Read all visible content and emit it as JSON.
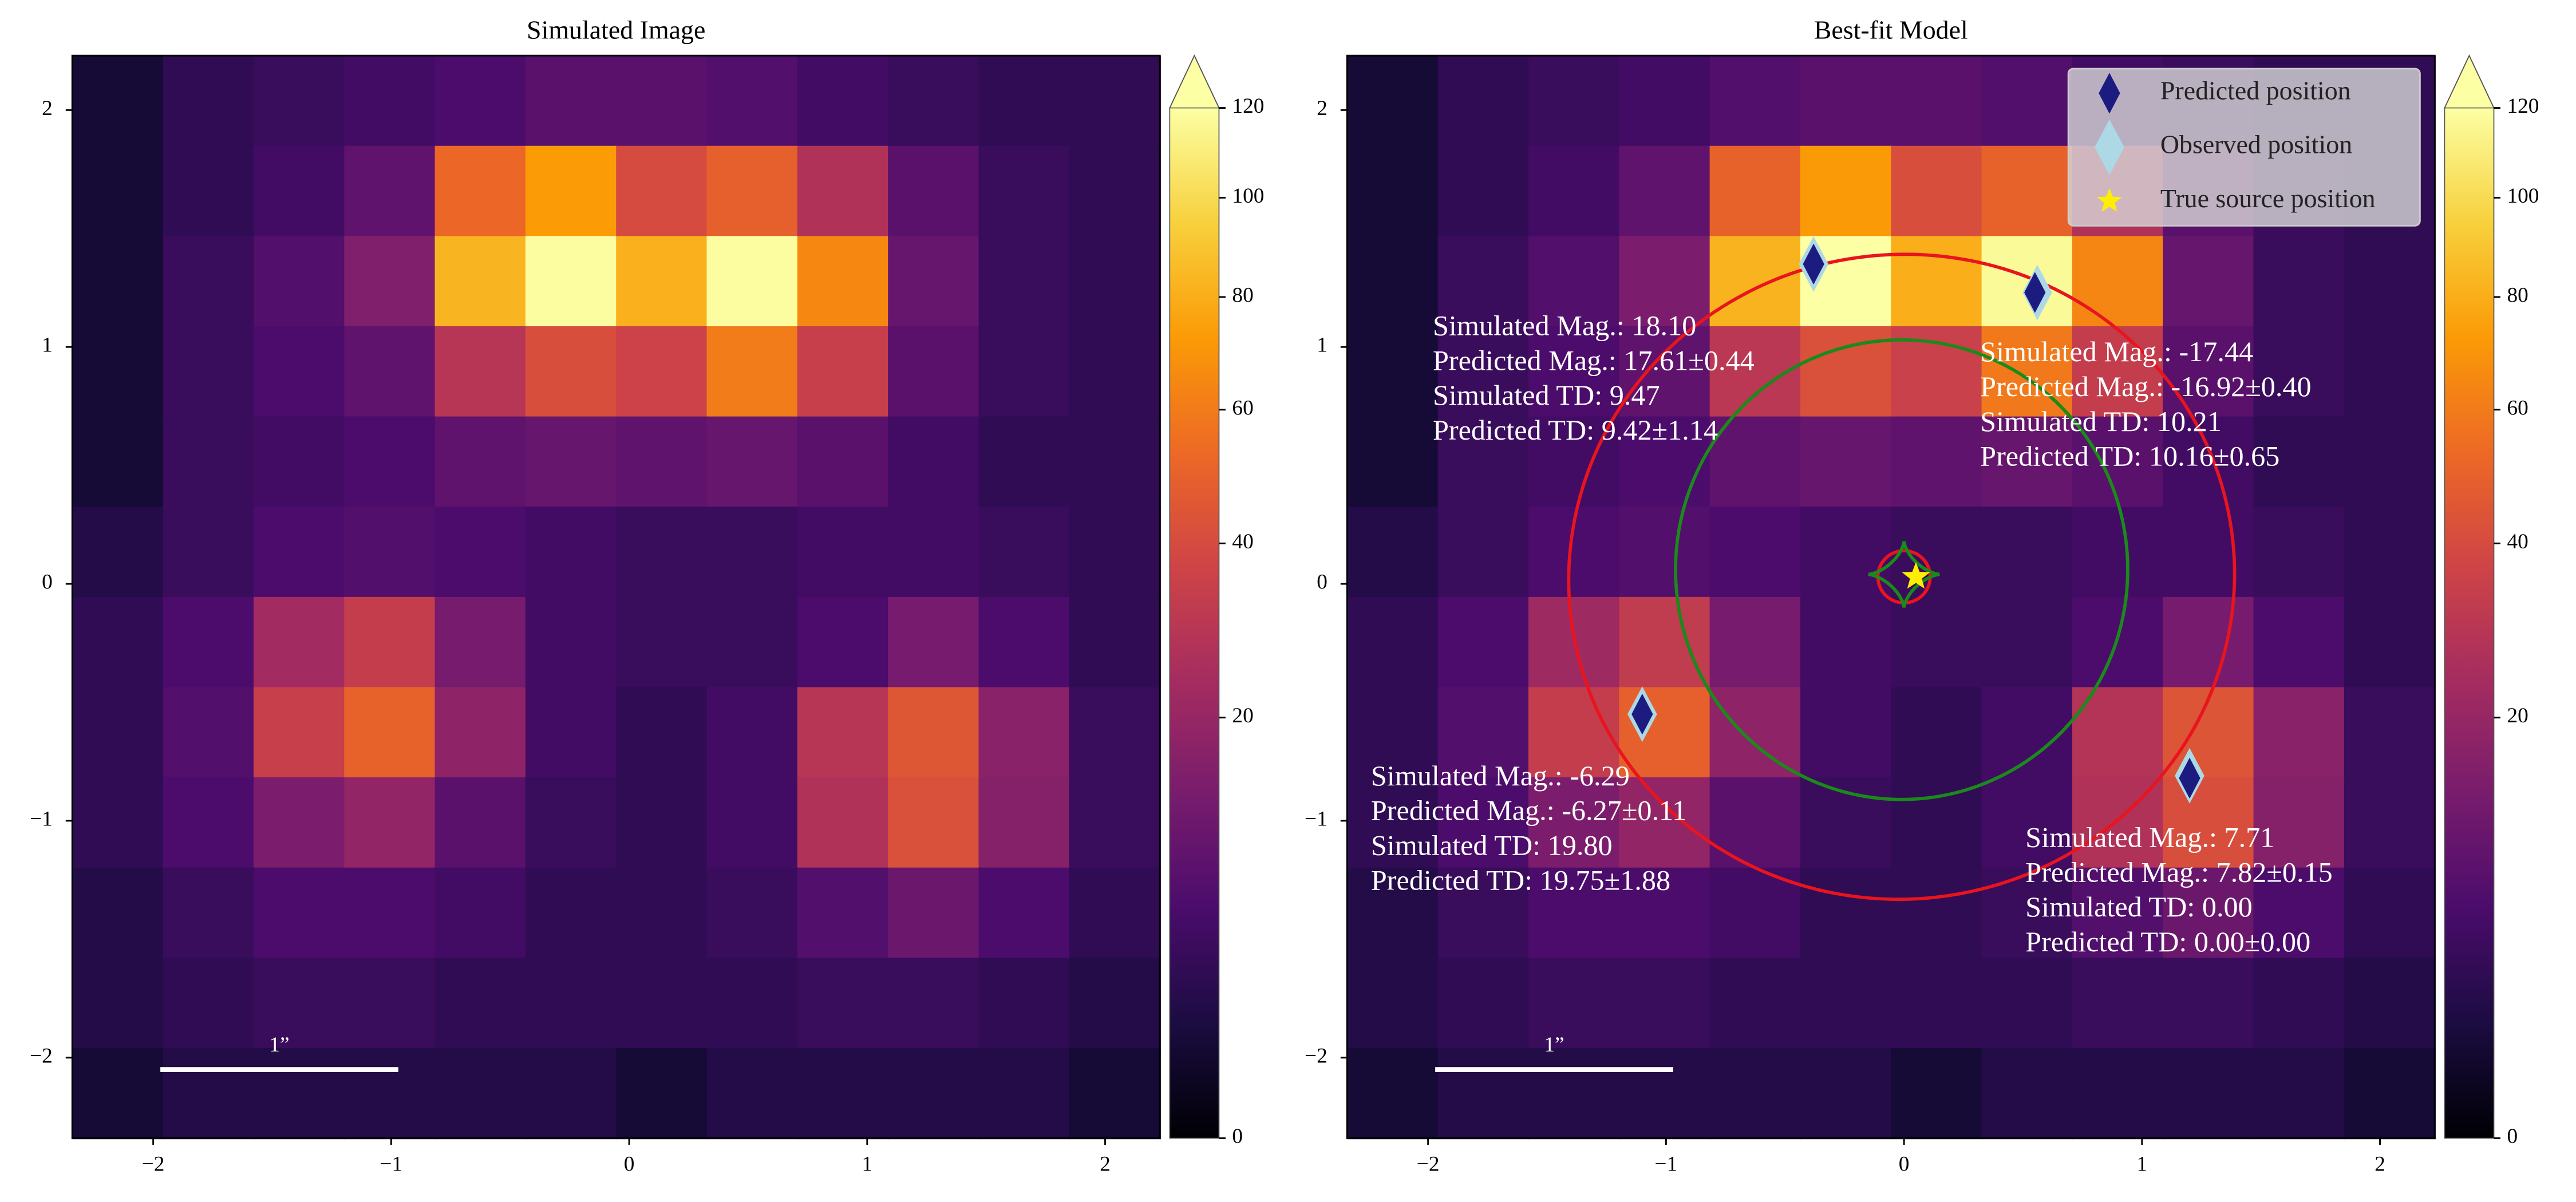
{
  "chart_data": [
    {
      "type": "heatmap",
      "title": "Simulated Image",
      "xlim": [
        -2.34,
        2.23
      ],
      "ylim": [
        -2.34,
        2.23
      ],
      "xticks": [
        {
          "value": -2,
          "label": "−2"
        },
        {
          "value": -1,
          "label": "−1"
        },
        0,
        1,
        2
      ],
      "yticks": [
        {
          "value": -2,
          "label": "−2"
        },
        {
          "value": -1,
          "label": "−1"
        },
        0,
        1,
        2
      ],
      "values": [
        [
          1,
          3,
          4,
          5,
          6,
          8,
          8,
          7,
          5,
          4,
          3,
          3
        ],
        [
          1,
          3,
          5,
          9,
          52,
          73,
          40,
          49,
          27,
          8,
          4,
          3
        ],
        [
          1,
          4,
          7,
          15,
          83,
          119,
          81,
          119,
          65,
          10,
          4,
          3
        ],
        [
          1,
          4,
          6,
          9,
          29,
          41,
          36,
          60,
          34,
          8,
          4,
          3
        ],
        [
          1,
          4,
          5,
          6,
          9,
          10,
          9,
          10,
          8,
          5,
          3,
          3
        ],
        [
          2,
          4,
          6,
          7,
          6,
          5,
          4,
          4,
          5,
          5,
          4,
          3
        ],
        [
          3,
          6,
          23,
          33,
          13,
          5,
          4,
          4,
          6,
          13,
          6,
          3
        ],
        [
          3,
          7,
          34,
          50,
          18,
          5,
          3,
          5,
          29,
          45,
          17,
          4
        ],
        [
          3,
          6,
          14,
          19,
          8,
          4,
          3,
          5,
          27,
          42,
          16,
          4
        ],
        [
          2,
          4,
          6,
          6,
          5,
          3,
          3,
          4,
          7,
          11,
          6,
          3
        ],
        [
          2,
          3,
          4,
          4,
          3,
          3,
          3,
          3,
          4,
          4,
          3,
          2
        ],
        [
          1,
          2,
          2,
          2,
          2,
          2,
          1,
          2,
          2,
          2,
          2,
          1
        ]
      ],
      "colormap": [
        "#000004",
        "#1b0c41",
        "#4a0c6b",
        "#781c6d",
        "#a52c60",
        "#cf4446",
        "#ed6925",
        "#fb9b06",
        "#f7d13d",
        "#fcffa4"
      ],
      "clim": [
        0,
        120
      ],
      "cticks": [
        0,
        20,
        40,
        60,
        80,
        100,
        120
      ],
      "norm": "power",
      "gamma": 0.5,
      "extend": "max",
      "scalebar": {
        "label": "1”",
        "x": [
          -1.97,
          -0.97
        ],
        "y": -2.05
      }
    },
    {
      "type": "heatmap",
      "title": "Best-fit Model",
      "xlim": [
        -2.34,
        2.23
      ],
      "ylim": [
        -2.34,
        2.23
      ],
      "xticks": [
        {
          "value": -2,
          "label": "−2"
        },
        {
          "value": -1,
          "label": "−1"
        },
        0,
        1,
        2
      ],
      "yticks": [
        {
          "value": -2,
          "label": "−2"
        },
        {
          "value": -1,
          "label": "−1"
        },
        0,
        1,
        2
      ],
      "values": [
        [
          1,
          3,
          4,
          5,
          7,
          8,
          8,
          7,
          5,
          4,
          3,
          3
        ],
        [
          1,
          3,
          5,
          9,
          50,
          72,
          41,
          50,
          27,
          8,
          4,
          3
        ],
        [
          1,
          4,
          7,
          14,
          82,
          120,
          80,
          117,
          64,
          10,
          4,
          3
        ],
        [
          1,
          4,
          6,
          9,
          30,
          42,
          35,
          59,
          33,
          8,
          4,
          3
        ],
        [
          1,
          4,
          5,
          6,
          9,
          10,
          9,
          10,
          8,
          5,
          3,
          3
        ],
        [
          2,
          4,
          6,
          7,
          6,
          5,
          4,
          4,
          5,
          5,
          4,
          3
        ],
        [
          3,
          6,
          22,
          32,
          13,
          5,
          4,
          4,
          6,
          13,
          6,
          3
        ],
        [
          3,
          7,
          33,
          49,
          18,
          5,
          3,
          5,
          28,
          44,
          17,
          4
        ],
        [
          3,
          6,
          14,
          19,
          8,
          4,
          3,
          5,
          27,
          41,
          16,
          4
        ],
        [
          2,
          4,
          6,
          6,
          5,
          3,
          3,
          4,
          7,
          11,
          6,
          3
        ],
        [
          2,
          3,
          4,
          4,
          3,
          3,
          3,
          3,
          4,
          4,
          3,
          2
        ],
        [
          1,
          2,
          2,
          2,
          2,
          2,
          1,
          2,
          2,
          2,
          2,
          1
        ]
      ],
      "colormap": [
        "#000004",
        "#1b0c41",
        "#4a0c6b",
        "#781c6d",
        "#a52c60",
        "#cf4446",
        "#ed6925",
        "#fb9b06",
        "#f7d13d",
        "#fcffa4"
      ],
      "clim": [
        0,
        120
      ],
      "cticks": [
        0,
        20,
        40,
        60,
        80,
        100,
        120
      ],
      "norm": "power",
      "gamma": 0.5,
      "extend": "max",
      "scalebar": {
        "label": "1”",
        "x": [
          -1.97,
          -0.97
        ],
        "y": -2.05
      },
      "curves": [
        {
          "shape": "ellipse",
          "color": "#e8141e",
          "center": [
            -0.01,
            0.03
          ],
          "radii": [
            1.4,
            1.36
          ],
          "angle": -10
        },
        {
          "shape": "ellipse",
          "color": "#1a8a1a",
          "center": [
            -0.01,
            0.06
          ],
          "radii": [
            0.95,
            0.97
          ],
          "angle": 0
        },
        {
          "shape": "ellipse",
          "color": "#e8141e",
          "center": [
            0.0,
            0.03
          ],
          "radii": [
            0.11,
            0.11
          ],
          "angle": 0
        },
        {
          "shape": "astroid",
          "color": "#1a8a1a",
          "center": [
            0.0,
            0.04
          ],
          "radii": [
            0.15,
            0.14
          ],
          "angle": 0
        }
      ],
      "series": [
        {
          "name": "Predicted position",
          "marker": "diamond",
          "color": "#1c1c80",
          "x": [
            -0.38,
            0.55,
            -1.1,
            1.2
          ],
          "y": [
            1.35,
            1.23,
            -0.55,
            -0.82
          ]
        },
        {
          "name": "Observed position",
          "marker": "diamond",
          "color": "#add8e6",
          "x": [
            -0.38,
            0.56,
            -1.1,
            1.2
          ],
          "y": [
            1.35,
            1.23,
            -0.55,
            -0.81
          ]
        },
        {
          "name": "True source position",
          "marker": "star",
          "color": "#ffee00",
          "x": [
            0.05
          ],
          "y": [
            0.03
          ]
        }
      ],
      "legend": "upper right",
      "annotations": [
        {
          "lines": [
            "Simulated Mag.: 18.10",
            "Predicted Mag.: 17.61±0.44",
            "Simulated TD: 9.47",
            "Predicted TD: 9.42±1.14"
          ]
        },
        {
          "lines": [
            "Simulated Mag.: -17.44",
            "Predicted Mag.: -16.92±0.40",
            "Simulated TD: 10.21",
            "Predicted TD: 10.16±0.65"
          ]
        },
        {
          "lines": [
            "Simulated Mag.: -6.29",
            "Predicted Mag.: -6.27±0.11",
            "Simulated TD: 19.80",
            "Predicted TD: 19.75±1.88"
          ]
        },
        {
          "lines": [
            "Simulated Mag.: 7.71",
            "Predicted Mag.: 7.82±0.15",
            "Simulated TD: 0.00",
            "Predicted TD: 0.00±0.00"
          ]
        }
      ]
    }
  ]
}
